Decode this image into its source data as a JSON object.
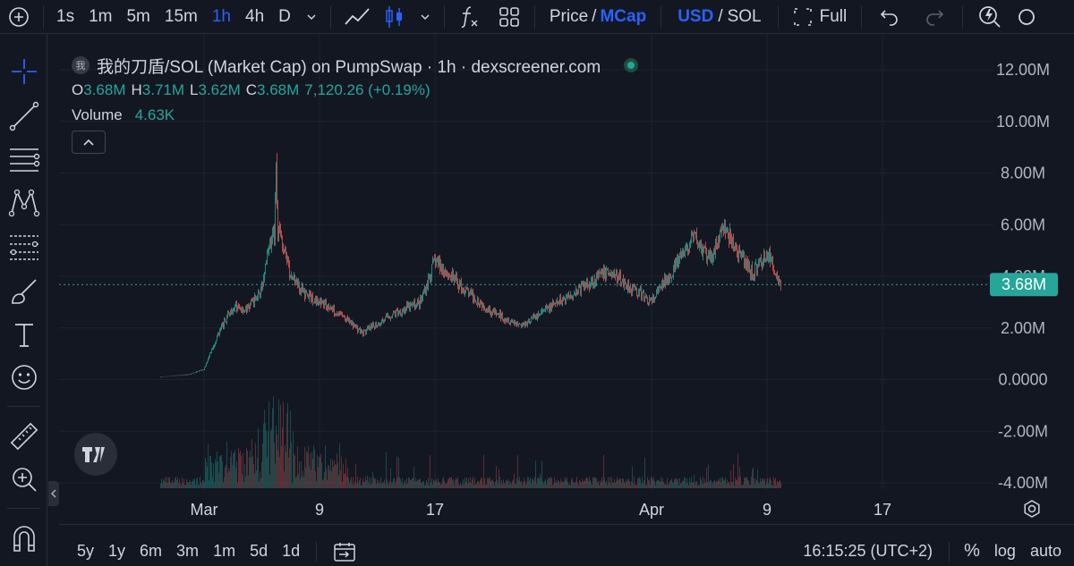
{
  "toolbar": {
    "intervals": [
      "1s",
      "1m",
      "5m",
      "15m",
      "1h",
      "4h",
      "D"
    ],
    "active_interval": "1h",
    "price_label": "Price",
    "mcap_label": "MCap",
    "usd_label": "USD",
    "sol_label": "SOL",
    "slash": "/",
    "full_label": "Full"
  },
  "legend": {
    "symbol_badge": "我",
    "title": "我的刀盾/SOL (Market Cap) on PumpSwap · 1h · dexscreener.com",
    "o_label": "O",
    "o_value": "3.68M",
    "h_label": "H",
    "h_value": "3.71M",
    "l_label": "L",
    "l_value": "3.62M",
    "c_label": "C",
    "c_value": "3.68M",
    "change": "7,120.26 (+0.19%)",
    "volume_label": "Volume",
    "volume_value": "4.63K"
  },
  "price_axis": {
    "ticks": [
      "12.00M",
      "10.00M",
      "8.00M",
      "6.00M",
      "4.00M",
      "2.00M",
      "0.0000",
      "-2.00M",
      "-4.00M"
    ],
    "current_price_label": "3.68M"
  },
  "time_axis": {
    "labels": [
      "Mar",
      "9",
      "17",
      "Apr",
      "9",
      "17"
    ]
  },
  "bottom": {
    "ranges": [
      "5y",
      "1y",
      "6m",
      "3m",
      "1m",
      "5d",
      "1d"
    ],
    "time_readout": "16:15:25 (UTC+2)",
    "percent_label": "%",
    "log_label": "log",
    "auto_label": "auto"
  },
  "colors": {
    "background": "#131722",
    "up": "#26a69a",
    "down": "#ef5350",
    "accent": "#2962ff",
    "price_tag": "#26a69a"
  },
  "chart_data": {
    "type": "candlestick",
    "y_unit": "market cap (USD)",
    "ylim": [
      -4000000,
      12000000
    ],
    "current_value": 3680000,
    "x_range": [
      "Feb 26",
      "Apr 10"
    ],
    "profile": [
      {
        "date": "Feb 26",
        "mcap": 100000
      },
      {
        "date": "Feb 28",
        "mcap": 200000
      },
      {
        "date": "Mar 1",
        "mcap": 400000
      },
      {
        "date": "Mar 2",
        "mcap": 1800000
      },
      {
        "date": "Mar 3",
        "mcap": 2800000
      },
      {
        "date": "Mar 4",
        "mcap": 2700000
      },
      {
        "date": "Mar 5",
        "mcap": 3500000
      },
      {
        "date": "Mar 6",
        "mcap": 6500000
      },
      {
        "date": "Mar 7",
        "mcap": 4000000
      },
      {
        "date": "Mar 8",
        "mcap": 3300000
      },
      {
        "date": "Mar 10",
        "mcap": 2700000
      },
      {
        "date": "Mar 12",
        "mcap": 1800000
      },
      {
        "date": "Mar 14",
        "mcap": 2500000
      },
      {
        "date": "Mar 16",
        "mcap": 3000000
      },
      {
        "date": "Mar 17",
        "mcap": 4600000
      },
      {
        "date": "Mar 19",
        "mcap": 3500000
      },
      {
        "date": "Mar 21",
        "mcap": 2600000
      },
      {
        "date": "Mar 23",
        "mcap": 2100000
      },
      {
        "date": "Mar 25",
        "mcap": 2800000
      },
      {
        "date": "Mar 27",
        "mcap": 3500000
      },
      {
        "date": "Mar 29",
        "mcap": 4200000
      },
      {
        "date": "Mar 31",
        "mcap": 3400000
      },
      {
        "date": "Apr 1",
        "mcap": 3000000
      },
      {
        "date": "Apr 3",
        "mcap": 4700000
      },
      {
        "date": "Apr 4",
        "mcap": 5500000
      },
      {
        "date": "Apr 5",
        "mcap": 4600000
      },
      {
        "date": "Apr 6",
        "mcap": 5900000
      },
      {
        "date": "Apr 7",
        "mcap": 4900000
      },
      {
        "date": "Apr 8",
        "mcap": 4100000
      },
      {
        "date": "Apr 9",
        "mcap": 4900000
      },
      {
        "date": "Apr 10",
        "mcap": 3680000
      }
    ],
    "peak": {
      "date": "Mar 6",
      "mcap": 8400000
    }
  }
}
